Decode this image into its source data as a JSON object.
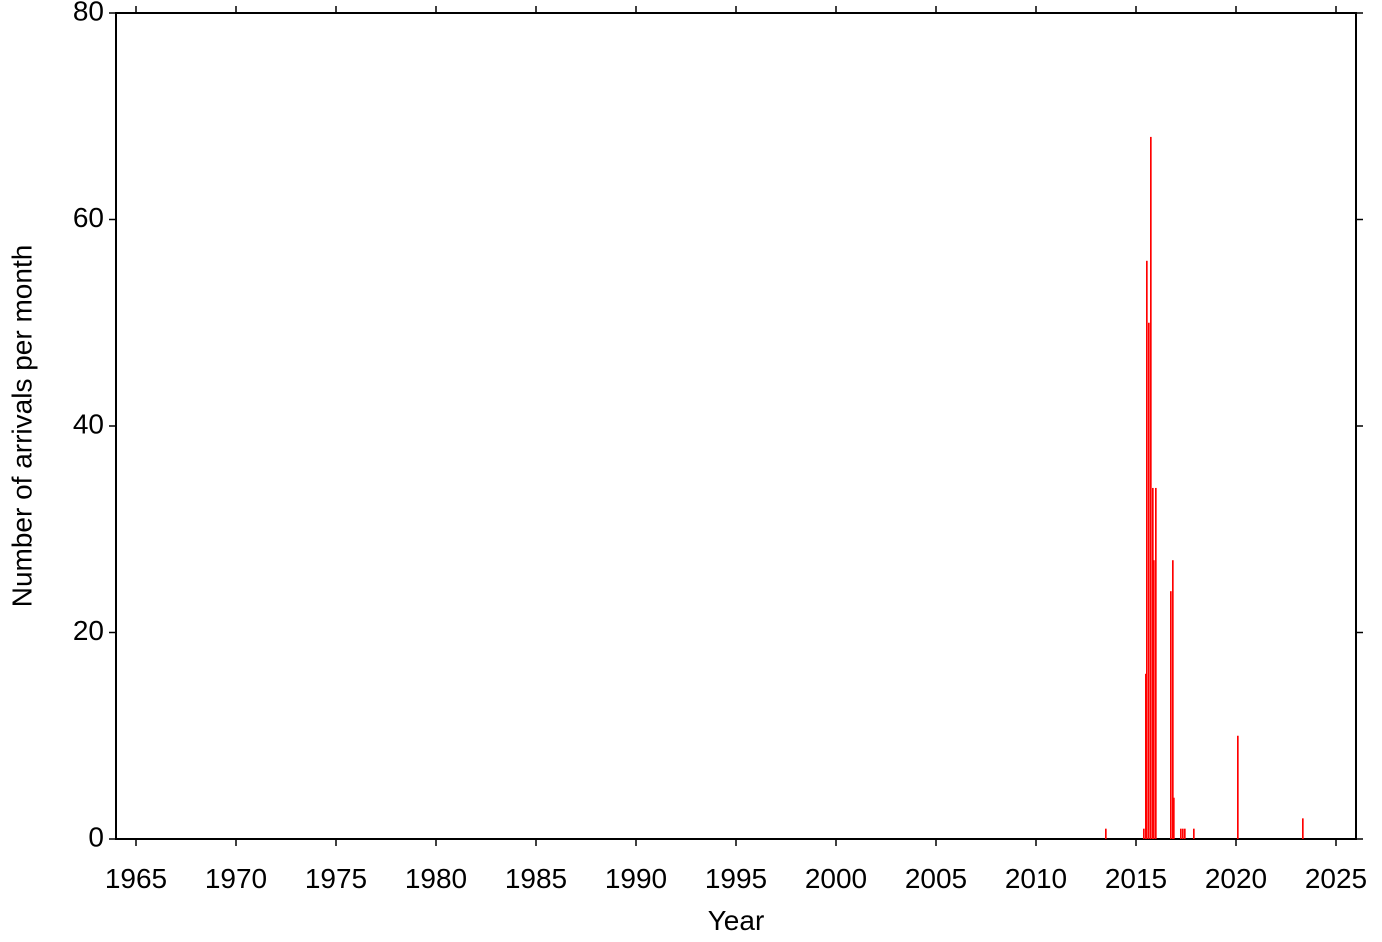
{
  "chart_data": {
    "type": "bar",
    "x_label": "Year",
    "y_label": "Number of arrivals per month",
    "x": [
      2013.45,
      2015.35,
      2015.45,
      2015.5,
      2015.6,
      2015.7,
      2015.8,
      2015.85,
      2015.95,
      2016.7,
      2016.8,
      2016.85,
      2017.2,
      2017.3,
      2017.4,
      2017.85,
      2020.05,
      2023.3
    ],
    "values": [
      1,
      1,
      16,
      56,
      50,
      68,
      34,
      27,
      34,
      24,
      27,
      4,
      1,
      1,
      1,
      1,
      10,
      2
    ],
    "bar_width": 0.0833,
    "color": "#ff0000",
    "xlim": [
      1964,
      2026
    ],
    "ylim": [
      0,
      80
    ],
    "xticks": [
      1965,
      1970,
      1975,
      1980,
      1985,
      1990,
      1995,
      2000,
      2005,
      2010,
      2015,
      2020,
      2025
    ],
    "yticks": [
      0,
      20,
      40,
      60,
      80
    ],
    "grid": false
  }
}
